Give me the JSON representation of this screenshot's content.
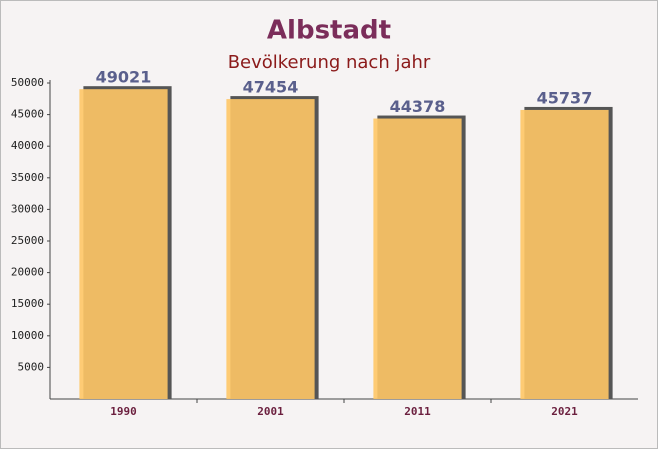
{
  "chart_data": {
    "type": "bar",
    "title": "Albstadt",
    "subtitle": "Bevölkerung nach jahr",
    "categories": [
      "1990",
      "2001",
      "2011",
      "2021"
    ],
    "values": [
      49021,
      47454,
      44378,
      45737
    ],
    "color": "#ffc766",
    "ylim": [
      0,
      50000
    ],
    "yticks": [
      5000,
      10000,
      15000,
      20000,
      25000,
      30000,
      35000,
      40000,
      45000,
      50000
    ],
    "grid": false
  }
}
